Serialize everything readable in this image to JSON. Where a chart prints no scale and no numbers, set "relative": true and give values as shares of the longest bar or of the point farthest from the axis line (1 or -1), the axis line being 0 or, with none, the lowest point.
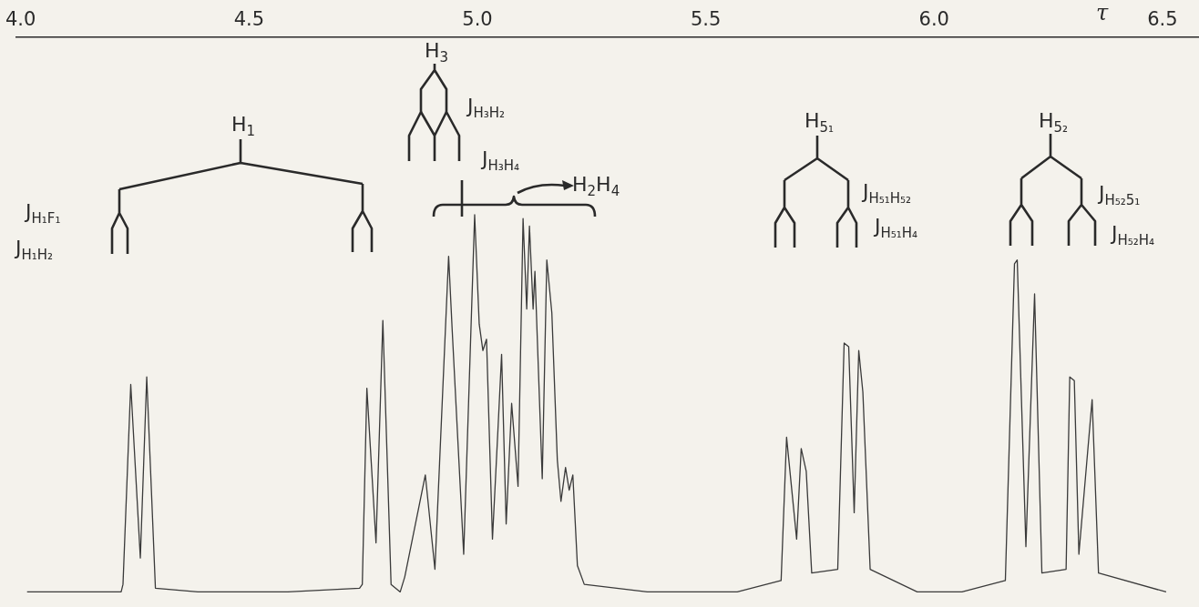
{
  "chart_data": {
    "type": "line",
    "relative": true,
    "marker": "none",
    "xlabel": "τ",
    "xlim": [
      3.99,
      6.58
    ],
    "xticks": [
      {
        "value": 4,
        "label": "4.0"
      },
      {
        "value": 4.5,
        "label": "4.5"
      },
      {
        "value": 5,
        "label": "5.0"
      },
      {
        "value": 5.5,
        "label": "5.5"
      },
      {
        "value": 6,
        "label": "6.0"
      },
      {
        "value": 6.5,
        "label": "6.5"
      }
    ],
    "series": [
      {
        "color": "#3a3a3a",
        "x": [
          4.014,
          4.22,
          4.224,
          4.241,
          4.262,
          4.276,
          4.295,
          4.388,
          4.585,
          4.742,
          4.748,
          4.758,
          4.778,
          4.793,
          4.811,
          4.831,
          4.841,
          4.886,
          4.907,
          4.937,
          4.945,
          4.97,
          4.994,
          5.004,
          5.012,
          5.02,
          5.033,
          5.045,
          5.053,
          5.063,
          5.075,
          5.089,
          5.1,
          5.108,
          5.114,
          5.122,
          5.126,
          5.142,
          5.152,
          5.163,
          5.175,
          5.183,
          5.193,
          5.201,
          5.209,
          5.219,
          5.234,
          5.372,
          5.569,
          5.665,
          5.677,
          5.699,
          5.709,
          5.72,
          5.732,
          5.789,
          5.803,
          5.813,
          5.825,
          5.835,
          5.844,
          5.86,
          5.963,
          6.061,
          6.156,
          6.176,
          6.182,
          6.201,
          6.22,
          6.236,
          6.289,
          6.297,
          6.307,
          6.317,
          6.346,
          6.36,
          6.508
        ],
        "values": [
          0,
          0,
          0.02,
          0.55,
          0.09,
          0.57,
          0.01,
          0,
          0,
          0.01,
          0.02,
          0.54,
          0.13,
          0.72,
          0.02,
          0,
          0.04,
          0.31,
          0.06,
          0.89,
          0.69,
          0.1,
          1,
          0.71,
          0.64,
          0.67,
          0.14,
          0.43,
          0.63,
          0.18,
          0.5,
          0.28,
          0.99,
          0.75,
          0.97,
          0.75,
          0.85,
          0.3,
          0.88,
          0.74,
          0.35,
          0.24,
          0.33,
          0.27,
          0.31,
          0.07,
          0.02,
          0,
          0,
          0.03,
          0.41,
          0.14,
          0.38,
          0.32,
          0.05,
          0.06,
          0.66,
          0.65,
          0.21,
          0.64,
          0.53,
          0.06,
          0,
          0,
          0.03,
          0.87,
          0.88,
          0.12,
          0.79,
          0.05,
          0.06,
          0.57,
          0.56,
          0.1,
          0.51,
          0.05,
          0
        ]
      }
    ],
    "annotations": [
      "H$_{1}$",
      "J$_{H₁F₁}$",
      "J$_{H₁H₂}$",
      "H$_{3}$",
      "J$_{H₃H₂}$",
      "J$_{H₃H₄}$",
      "H$_{2}$H$_{4}$",
      "H$_{5₁}$",
      "J$_{H₅₁H₅₂}$",
      "J$_{H₅₁H₄}$",
      "H$_{5₂}$",
      "J$_{H₅₂5₁}$",
      "J$_{H₅₂H₄}$"
    ]
  }
}
